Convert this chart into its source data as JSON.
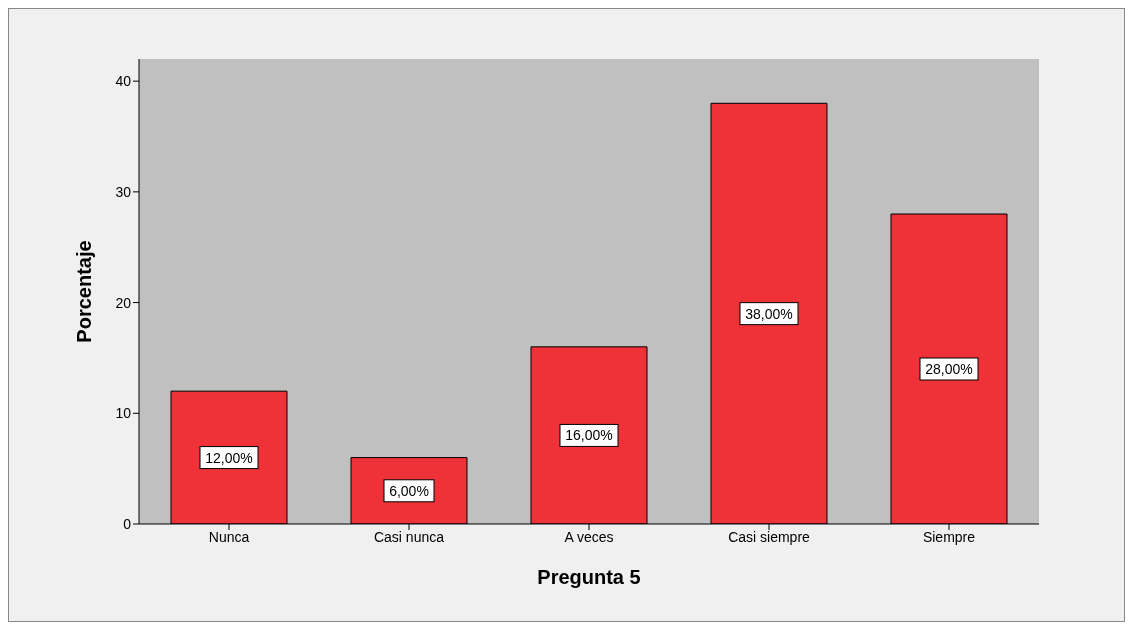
{
  "chart_data": {
    "type": "bar",
    "xlabel": "Pregunta 5",
    "ylabel": "Porcentaje",
    "categories": [
      "Nunca",
      "Casi nunca",
      "A veces",
      "Casi siempre",
      "Siempre"
    ],
    "values": [
      12,
      6,
      16,
      38,
      28
    ],
    "value_labels": [
      "12,00%",
      "6,00%",
      "16,00%",
      "38,00%",
      "28,00%"
    ],
    "color": "#ee3238",
    "ylim": [
      0,
      42
    ],
    "yticks": [
      0,
      10,
      20,
      30,
      40
    ],
    "grid": false,
    "legend": false
  }
}
